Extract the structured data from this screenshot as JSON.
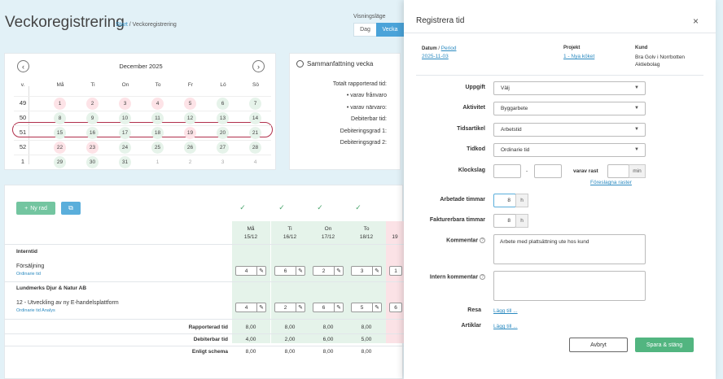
{
  "page": {
    "title": "Veckoregistrering",
    "breadcrumb_start": "Start",
    "breadcrumb_sep": "/",
    "breadcrumb_current": "Veckoregistrering"
  },
  "view": {
    "label": "Visningsläge",
    "day": "Dag",
    "week": "Vecka"
  },
  "calendar": {
    "month": "December 2025",
    "prev": "‹",
    "next": "›",
    "headers": [
      "v.",
      "Må",
      "Ti",
      "On",
      "To",
      "Fr",
      "Lö",
      "Sö"
    ],
    "weeks": [
      {
        "no": "49",
        "days": [
          {
            "d": "1",
            "s": "r"
          },
          {
            "d": "2",
            "s": "r"
          },
          {
            "d": "3",
            "s": "r"
          },
          {
            "d": "4",
            "s": "r"
          },
          {
            "d": "5",
            "s": "r"
          },
          {
            "d": "6",
            "s": "g"
          },
          {
            "d": "7",
            "s": "g"
          }
        ]
      },
      {
        "no": "50",
        "days": [
          {
            "d": "8",
            "s": "g"
          },
          {
            "d": "9",
            "s": "g"
          },
          {
            "d": "10",
            "s": "g"
          },
          {
            "d": "11",
            "s": "g"
          },
          {
            "d": "12",
            "s": "g"
          },
          {
            "d": "13",
            "s": "g"
          },
          {
            "d": "14",
            "s": "g"
          }
        ]
      },
      {
        "no": "51",
        "days": [
          {
            "d": "15",
            "s": "g"
          },
          {
            "d": "16",
            "s": "g"
          },
          {
            "d": "17",
            "s": "g"
          },
          {
            "d": "18",
            "s": "g"
          },
          {
            "d": "19",
            "s": "r"
          },
          {
            "d": "20",
            "s": "g"
          },
          {
            "d": "21",
            "s": "g"
          }
        ]
      },
      {
        "no": "52",
        "days": [
          {
            "d": "22",
            "s": "r"
          },
          {
            "d": "23",
            "s": "r"
          },
          {
            "d": "24",
            "s": "g"
          },
          {
            "d": "25",
            "s": "g"
          },
          {
            "d": "26",
            "s": "g"
          },
          {
            "d": "27",
            "s": "g"
          },
          {
            "d": "28",
            "s": "g"
          }
        ]
      },
      {
        "no": "1",
        "days": [
          {
            "d": "29",
            "s": "g"
          },
          {
            "d": "30",
            "s": "g"
          },
          {
            "d": "31",
            "s": "g"
          },
          {
            "d": "1",
            "s": "m"
          },
          {
            "d": "2",
            "s": "m"
          },
          {
            "d": "3",
            "s": "m"
          },
          {
            "d": "4",
            "s": "m"
          }
        ]
      }
    ]
  },
  "summary": {
    "title": "Sammanfattning vecka",
    "lines": [
      "Totalt rapporterad tid:",
      "• varav frånvaro",
      "• varav närvaro:",
      "Debiterbar tid:",
      "Debiteringsgrad 1:",
      "Debiteringsgrad 2:"
    ]
  },
  "grid": {
    "new_row": "Ny rad",
    "copy_icon": "copy-icon",
    "days": [
      {
        "name": "Må",
        "date": "15/12"
      },
      {
        "name": "Ti",
        "date": "16/12"
      },
      {
        "name": "On",
        "date": "17/12"
      },
      {
        "name": "To",
        "date": "18/12"
      },
      {
        "name": "",
        "date": "19"
      }
    ],
    "sections": [
      {
        "title": "Interntid",
        "rows": [
          {
            "name": "Försäljning",
            "sub": "Ordinarie tid",
            "values": [
              "4",
              "6",
              "2",
              "3",
              "1"
            ]
          }
        ]
      },
      {
        "title": "Lundmerks Djur & Natur AB",
        "rows": [
          {
            "name": "12 - Utveckling av ny E-handelsplattform",
            "sub": "Ordinarie tid  Analys",
            "values": [
              "4",
              "2",
              "6",
              "5",
              "6"
            ]
          }
        ]
      }
    ],
    "totals": [
      {
        "label": "Rapporterad tid",
        "values": [
          "8,00",
          "8,00",
          "8,00",
          "8,00"
        ]
      },
      {
        "label": "Debiterbar tid",
        "values": [
          "4,00",
          "2,00",
          "6,00",
          "5,00"
        ]
      },
      {
        "label": "Enligt schema",
        "values": [
          "8,00",
          "8,00",
          "8,00",
          "8,00"
        ]
      }
    ]
  },
  "modal": {
    "title": "Registrera tid",
    "close": "×",
    "datum_label": "Datum",
    "datum_sep": "/",
    "datum_link": "Period",
    "datum_value": "2025-11-03",
    "projekt_label": "Projekt",
    "projekt_value": "1 - Nya köket",
    "kund_label": "Kund",
    "kund_value": "Bra Golv i Norrbotten Aktiebolag",
    "uppgift_label": "Uppgift",
    "uppgift_value": "Välj",
    "aktivitet_label": "Aktivitet",
    "aktivitet_value": "Byggarbete",
    "tidsartikel_label": "Tidsartikel",
    "tidsartikel_value": "Arbetstid",
    "tidkod_label": "Tidkod",
    "tidkod_value": "Ordinarie tid",
    "klockslag_label": "Klockslag",
    "dash": "-",
    "rast_label": "varav rast",
    "rast_unit": "min",
    "rast_link": "Föreslagna raster",
    "arbetade_label": "Arbetade timmar",
    "arbetade_value": "8",
    "arbetade_unit": "h",
    "fakt_label": "Fakturerbara timmar",
    "fakt_value": "8",
    "fakt_unit": "h",
    "kommentar_label": "Kommentar",
    "kommentar_value": "Arbete med plattsättning ute hos kund",
    "intern_label": "Intern kommentar",
    "resa_label": "Resa",
    "resa_link": "Lägg till ...",
    "artiklar_label": "Artiklar",
    "artiklar_link": "Lägg till ...",
    "cancel": "Avbryt",
    "save": "Spara & stäng"
  }
}
